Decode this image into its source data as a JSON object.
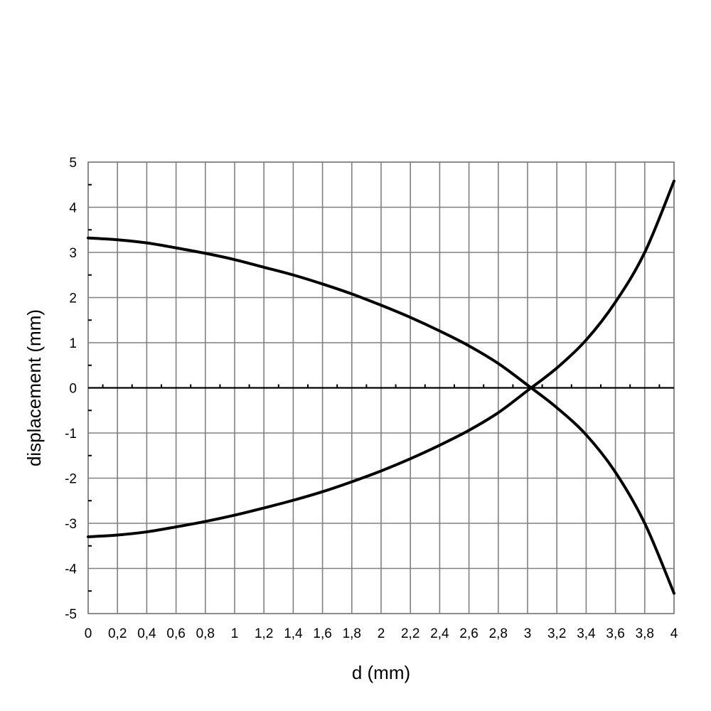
{
  "chart_data": {
    "type": "line",
    "title": "",
    "xlabel": "d (mm)",
    "ylabel": "displacement (mm)",
    "xlim": [
      0,
      4
    ],
    "ylim": [
      -5,
      5
    ],
    "grid": true,
    "x_ticks": [
      0,
      0.2,
      0.4,
      0.6,
      0.8,
      1,
      1.2,
      1.4,
      1.6,
      1.8,
      2,
      2.2,
      2.4,
      2.6,
      2.8,
      3,
      3.2,
      3.4,
      3.6,
      3.8,
      4
    ],
    "x_tick_labels": [
      "0",
      "0,2",
      "0,4",
      "0,6",
      "0,8",
      "1",
      "1,2",
      "1,4",
      "1,6",
      "1,8",
      "2",
      "2,2",
      "2,4",
      "2,6",
      "2,8",
      "3",
      "3,2",
      "3,4",
      "3,6",
      "3,8",
      "4"
    ],
    "y_ticks": [
      5,
      4,
      3,
      2,
      1,
      0,
      -1,
      -2,
      -3,
      -4,
      -5
    ],
    "y_tick_labels": [
      "5",
      "4",
      "3",
      "2",
      "1",
      "0",
      "-1",
      "-2",
      "-3",
      "-4",
      "-5"
    ],
    "x": [
      0,
      0.2,
      0.4,
      0.6,
      0.8,
      1,
      1.2,
      1.4,
      1.6,
      1.8,
      2,
      2.2,
      2.4,
      2.6,
      2.8,
      3,
      3.2,
      3.4,
      3.6,
      3.8,
      4
    ],
    "series": [
      {
        "values": [
          3.32,
          3.28,
          3.21,
          3.1,
          2.98,
          2.84,
          2.67,
          2.5,
          2.3,
          2.08,
          1.83,
          1.56,
          1.26,
          0.93,
          0.54,
          0.06,
          -0.44,
          -1.04,
          -1.87,
          -3.0,
          -4.55
        ]
      },
      {
        "values": [
          -3.3,
          -3.26,
          -3.19,
          -3.08,
          -2.96,
          -2.82,
          -2.66,
          -2.49,
          -2.3,
          -2.08,
          -1.84,
          -1.57,
          -1.27,
          -0.94,
          -0.55,
          -0.06,
          0.44,
          1.06,
          1.9,
          3.0,
          4.58
        ]
      }
    ]
  }
}
